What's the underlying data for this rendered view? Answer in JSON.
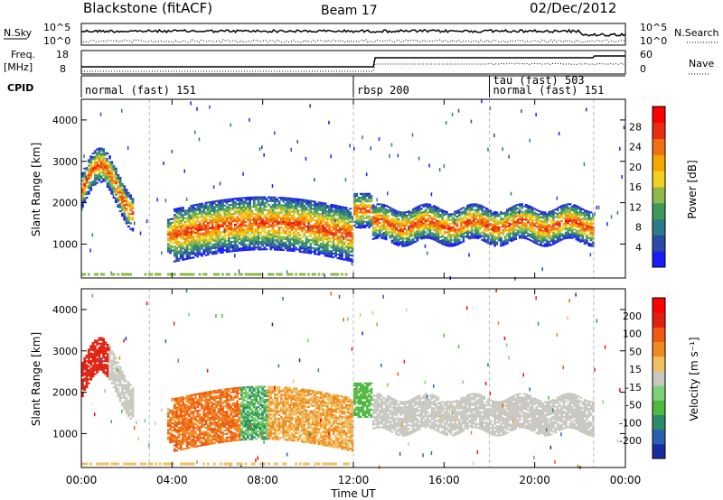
{
  "header": {
    "station": "Blackstone (fitACF)",
    "beam": "Beam 17",
    "date": "02/Dec/2012"
  },
  "top_panels": {
    "nsky_label": "N.Sky",
    "nsky_ticks": [
      "10^5",
      "10^0"
    ],
    "nsearch_label": "N.Search",
    "nsearch_ticks": [
      "10^5",
      "10^0"
    ],
    "freq_label": "Freq.",
    "freq_unit": "[MHz]",
    "freq_ticks": [
      "18",
      "8"
    ],
    "nave_label": "Nave",
    "nave_ticks": [
      "60",
      "0"
    ],
    "cpid_label": "CPID"
  },
  "cpid_segments": [
    {
      "label": "normal (fast) 151",
      "start_hour": 0.0
    },
    {
      "label": "rbsp 200",
      "start_hour": 12.0
    },
    {
      "label": "tau (fast) 503",
      "start_hour": 18.0
    },
    {
      "label": "normal (fast) 151",
      "start_hour": 18.0
    }
  ],
  "chart_data": [
    {
      "type": "heatmap",
      "panel": "power",
      "xlabel": "Time UT",
      "ylabel": "Slant Range [km]",
      "x_ticks": [
        "00:00",
        "04:00",
        "08:00",
        "12:00",
        "16:00",
        "20:00",
        "00:00"
      ],
      "xlim": [
        0,
        24
      ],
      "ylim": [
        180,
        4500
      ],
      "y_ticks": [
        1000,
        2000,
        3000,
        4000
      ],
      "colorbar_label": "Power [dB]",
      "colorbar_ticks": [
        4,
        8,
        12,
        16,
        20,
        24,
        28
      ],
      "colorbar_range": [
        0,
        30
      ],
      "colors": [
        "#1a1aff",
        "#2a4aa6",
        "#2d7a8a",
        "#3f9a5a",
        "#8fb84a",
        "#f0d020",
        "#f2a800",
        "#f07010",
        "#e83010",
        "#ff0000"
      ]
    },
    {
      "type": "heatmap",
      "panel": "velocity",
      "xlabel": "Time UT",
      "ylabel": "Slant Range [km]",
      "x_ticks": [
        "00:00",
        "04:00",
        "08:00",
        "12:00",
        "16:00",
        "20:00",
        "00:00"
      ],
      "xlim": [
        0,
        24
      ],
      "ylim": [
        180,
        4500
      ],
      "y_ticks": [
        1000,
        2000,
        3000,
        4000
      ],
      "colorbar_label": "Velocity [m s⁻¹]",
      "colorbar_ticks": [
        "200",
        "100",
        "50",
        "15",
        "-15",
        "-50",
        "-100",
        "-200"
      ],
      "colors": [
        "#1a2aa0",
        "#2a60b0",
        "#2a8a6a",
        "#4fb840",
        "#7ed07a",
        "#c8c8c0",
        "#f0c060",
        "#f08a20",
        "#ee5a10",
        "#e02010",
        "#ff0000"
      ]
    }
  ],
  "footer": {
    "time_axis_label": "Time UT"
  }
}
